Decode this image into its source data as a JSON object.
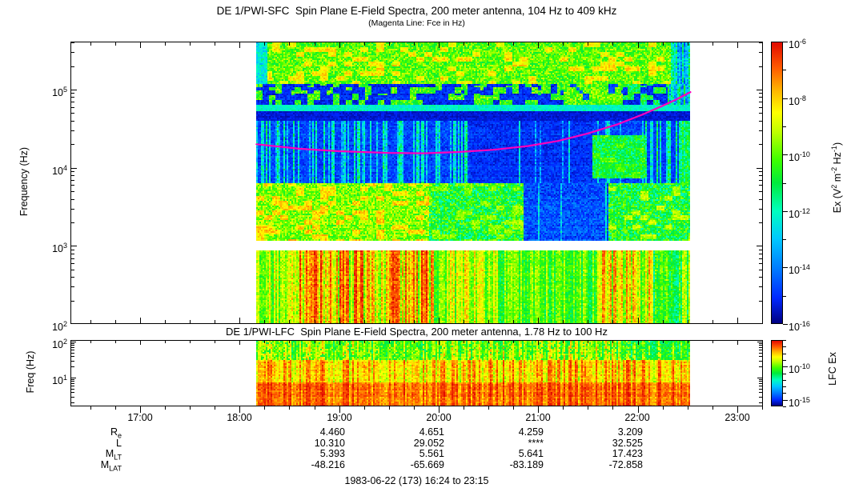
{
  "caption": "1983-06-22 (173) 16:24 to 23:15",
  "time_axis": {
    "hour_labels": [
      "17:00",
      "18:00",
      "19:00",
      "20:00",
      "21:00",
      "22:00",
      "23:00"
    ],
    "minor_tick_interval_min": 15,
    "range_hours": [
      16.3,
      23.26
    ]
  },
  "ephemeris": {
    "row_labels": [
      {
        "base": "R",
        "sub": "e"
      },
      {
        "base": "L",
        "sub": ""
      },
      {
        "base": "M",
        "sub": "LT"
      },
      {
        "base": "M",
        "sub": "LAT"
      }
    ],
    "columns_hours": [
      "19:00",
      "20:00",
      "21:00",
      "22:00"
    ],
    "values": [
      [
        "4.460",
        "4.651",
        "4.259",
        "3.209"
      ],
      [
        "10.310",
        "29.052",
        "****",
        "32.525"
      ],
      [
        "5.393",
        "5.561",
        "5.641",
        "17.423"
      ],
      [
        "-48.216",
        "-65.669",
        "-83.189",
        "-72.858"
      ]
    ]
  },
  "colors": {
    "fce_line": "#ff00bb",
    "frame": "#000000",
    "background": "#ffffff",
    "colormap_stops": [
      [
        0.0,
        [
          0,
          0,
          130
        ]
      ],
      [
        0.1,
        [
          0,
          40,
          255
        ]
      ],
      [
        0.2,
        [
          0,
          120,
          255
        ]
      ],
      [
        0.3,
        [
          0,
          200,
          255
        ]
      ],
      [
        0.4,
        [
          0,
          255,
          190
        ]
      ],
      [
        0.5,
        [
          0,
          235,
          60
        ]
      ],
      [
        0.58,
        [
          60,
          255,
          0
        ]
      ],
      [
        0.68,
        [
          190,
          255,
          0
        ]
      ],
      [
        0.75,
        [
          255,
          255,
          0
        ]
      ],
      [
        0.82,
        [
          255,
          180,
          0
        ]
      ],
      [
        0.9,
        [
          255,
          90,
          0
        ]
      ],
      [
        1.0,
        [
          225,
          10,
          0
        ]
      ]
    ]
  },
  "chart_data": [
    {
      "type": "heatmap",
      "name": "SFC spectrogram",
      "title": "DE 1/PWI-SFC  Spin Plane E-Field Spectra, 200 meter antenna, 104 Hz to 409 kHz",
      "subtitle": "(Magenta Line: Fce in Hz)",
      "ylabel": "Frequency (Hz)",
      "yticks": [
        {
          "base": "10",
          "exp": "5"
        },
        {
          "base": "10",
          "exp": "4"
        },
        {
          "base": "10",
          "exp": "3"
        },
        {
          "base": "10",
          "exp": "2"
        }
      ],
      "ylim_hz": [
        100,
        409000
      ],
      "xlim_hours": [
        16.3,
        23.26
      ],
      "data_time_range_hours": [
        18.166,
        22.527
      ],
      "white_gap_hz": [
        890,
        1150
      ],
      "gap_lf": [
        2.95,
        3.06
      ],
      "colorbar": {
        "label_parts": [
          "Ex (V",
          "2",
          " m",
          "-2",
          " Hz",
          "-1",
          ")"
        ],
        "ticks": [
          {
            "base": "10",
            "exp": "-6"
          },
          {
            "base": "10",
            "exp": "-8"
          },
          {
            "base": "10",
            "exp": "-10"
          },
          {
            "base": "10",
            "exp": "-12"
          },
          {
            "base": "10",
            "exp": "-14"
          },
          {
            "base": "10",
            "exp": "-16"
          }
        ],
        "exponent_range": [
          -6,
          -16
        ]
      },
      "fce_line_hours_hz": [
        [
          18.17,
          20000
        ],
        [
          18.6,
          17500
        ],
        [
          19.0,
          16300
        ],
        [
          19.5,
          15500
        ],
        [
          19.85,
          15300
        ],
        [
          20.2,
          15900
        ],
        [
          20.55,
          17000
        ],
        [
          20.9,
          19000
        ],
        [
          21.2,
          22000
        ],
        [
          21.5,
          27500
        ],
        [
          21.8,
          36000
        ],
        [
          22.05,
          48000
        ],
        [
          22.25,
          62000
        ],
        [
          22.4,
          76000
        ],
        [
          22.53,
          93000
        ]
      ],
      "bands": [
        {
          "lf": [
            5.08,
            5.614
          ],
          "segs": [
            {
              "t": [
                18.166,
                18.28
              ],
              "style": "flat",
              "base": 0.36,
              "noise": 0.08
            },
            {
              "t": [
                18.28,
                22.33
              ],
              "style": "mottle",
              "base": 0.6,
              "noise": 0.1,
              "patchLevel": 0.76,
              "patchProb": 0.22
            },
            {
              "t": [
                22.33,
                22.53
              ],
              "style": "vstreak",
              "base": 0.45,
              "noise": 0.12,
              "prob": 0.5,
              "level": 0.3
            }
          ]
        },
        {
          "lf": [
            4.8,
            5.08
          ],
          "segs": [
            {
              "t": [
                18.166,
                21.25
              ],
              "style": "blotch",
              "base": 0.57,
              "blobLevel": 0.1,
              "density": 0.58,
              "noise": 0.1
            },
            {
              "t": [
                21.25,
                21.85
              ],
              "style": "blotch",
              "base": 0.6,
              "blobLevel": 0.14,
              "density": 0.25,
              "noise": 0.1
            },
            {
              "t": [
                21.85,
                22.3
              ],
              "style": "blotch",
              "base": 0.5,
              "blobLevel": 0.1,
              "density": 0.55,
              "noise": 0.1
            },
            {
              "t": [
                22.3,
                22.53
              ],
              "style": "vstreak",
              "base": 0.25,
              "noise": 0.1,
              "prob": 0.5,
              "level": 0.45
            }
          ]
        },
        {
          "lf": [
            4.727,
            4.8
          ],
          "segs": [
            {
              "t": [
                18.166,
                22.53
              ],
              "style": "flat",
              "base": 0.38,
              "noise": 0.05
            }
          ]
        },
        {
          "lf": [
            4.6,
            4.727
          ],
          "segs": [
            {
              "t": [
                18.166,
                22.53
              ],
              "style": "flat",
              "base": 0.055,
              "noise": 0.03
            }
          ]
        },
        {
          "lf": [
            3.8,
            4.6
          ],
          "segs": [
            {
              "t": [
                18.166,
                20.3
              ],
              "style": "vstreak",
              "base": 0.14,
              "noise": 0.06,
              "prob": 0.42,
              "level": 0.36
            },
            {
              "t": [
                20.3,
                21.55
              ],
              "style": "vstreak",
              "base": 0.11,
              "noise": 0.05,
              "prob": 0.15,
              "level": 0.32
            },
            {
              "t": [
                21.55,
                22.08
              ],
              "style": "vstreak",
              "base": 0.14,
              "noise": 0.06,
              "prob": 0.2,
              "level": 0.35
            },
            {
              "t": [
                22.08,
                22.42
              ],
              "style": "vstreak",
              "base": 0.13,
              "noise": 0.05,
              "prob": 0.35,
              "level": 0.4
            },
            {
              "t": [
                22.42,
                22.53
              ],
              "style": "vstreak",
              "base": 0.3,
              "noise": 0.1,
              "prob": 0.6,
              "level": 0.45
            }
          ]
        },
        {
          "lf": [
            3.86,
            4.42
          ],
          "segs": [
            {
              "t": [
                21.55,
                22.08
              ],
              "style": "mottle",
              "base": 0.5,
              "noise": 0.1,
              "patchLevel": 0.6,
              "patchProb": 0.15
            }
          ]
        },
        {
          "lf": [
            3.05,
            3.8
          ],
          "segs": [
            {
              "t": [
                18.166,
                19.9
              ],
              "style": "mottle",
              "base": 0.63,
              "noise": 0.1,
              "patchLevel": 0.78,
              "patchProb": 0.28
            },
            {
              "t": [
                19.9,
                20.85
              ],
              "style": "mottle",
              "base": 0.52,
              "noise": 0.13,
              "patchLevel": 0.64,
              "patchProb": 0.18
            },
            {
              "t": [
                20.85,
                21.7
              ],
              "style": "vstreak",
              "base": 0.15,
              "noise": 0.07,
              "prob": 0.12,
              "level": 0.38
            },
            {
              "t": [
                21.7,
                22.53
              ],
              "style": "mottle",
              "base": 0.52,
              "noise": 0.13,
              "patchLevel": 0.68,
              "patchProb": 0.18
            }
          ]
        },
        {
          "lf": [
            2.0,
            2.95
          ],
          "segs": [
            {
              "t": [
                18.166,
                18.5
              ],
              "style": "columns",
              "lo": 0.54,
              "hi": 0.76,
              "noise": 0.07
            },
            {
              "t": [
                18.5,
                19.95
              ],
              "style": "columns",
              "lo": 0.58,
              "hi": 0.97,
              "noise": 0.07
            },
            {
              "t": [
                19.95,
                20.6
              ],
              "style": "columns",
              "lo": 0.54,
              "hi": 0.8,
              "noise": 0.07
            },
            {
              "t": [
                20.6,
                21.6
              ],
              "style": "columns",
              "lo": 0.48,
              "hi": 0.68,
              "noise": 0.07
            },
            {
              "t": [
                21.6,
                22.15
              ],
              "style": "columns",
              "lo": 0.54,
              "hi": 0.88,
              "noise": 0.07
            },
            {
              "t": [
                22.15,
                22.53
              ],
              "style": "columns",
              "lo": 0.42,
              "hi": 0.72,
              "noise": 0.08
            }
          ]
        }
      ]
    },
    {
      "type": "heatmap",
      "name": "LFC spectrogram",
      "title": "DE 1/PWI-LFC  Spin Plane E-Field Spectra, 200 meter antenna, 1.78 Hz to 100 Hz",
      "ylabel": "Freq (Hz)",
      "yticks": [
        {
          "base": "10",
          "exp": "2"
        },
        {
          "base": "10",
          "exp": "1"
        }
      ],
      "ylim_hz": [
        1.78,
        100
      ],
      "xlim_hours": [
        16.3,
        23.26
      ],
      "data_time_range_hours": [
        18.166,
        22.527
      ],
      "colorbar": {
        "label": "LFC Ex",
        "ticks": [
          {
            "base": "10",
            "exp": "-10"
          },
          {
            "base": "10",
            "exp": "-15"
          }
        ],
        "exponent_range": [
          -6,
          -16
        ]
      },
      "bands": [
        {
          "lf": [
            1.5,
            2.05
          ],
          "segs": [
            {
              "t": [
                18.166,
                21.85
              ],
              "style": "columns",
              "lo": 0.52,
              "hi": 0.8,
              "noise": 0.09,
              "fleck": 0.5,
              "fleckProb": 0.12,
              "colSeed": 500
            },
            {
              "t": [
                21.85,
                22.53
              ],
              "style": "columns",
              "lo": 0.45,
              "hi": 0.72,
              "noise": 0.1,
              "fleck": 0.48,
              "fleckProb": 0.2,
              "colSeed": 500
            }
          ]
        },
        {
          "lf": [
            0.85,
            1.5
          ],
          "segs": [
            {
              "t": [
                18.166,
                22.53
              ],
              "style": "columns",
              "lo": 0.66,
              "hi": 0.92,
              "noise": 0.06,
              "colSeed": 500
            }
          ]
        },
        {
          "lf": [
            0.1,
            0.85
          ],
          "segs": [
            {
              "t": [
                18.166,
                22.53
              ],
              "style": "columns",
              "lo": 0.8,
              "hi": 0.97,
              "noise": 0.05,
              "colSeed": 500
            }
          ]
        }
      ]
    }
  ]
}
